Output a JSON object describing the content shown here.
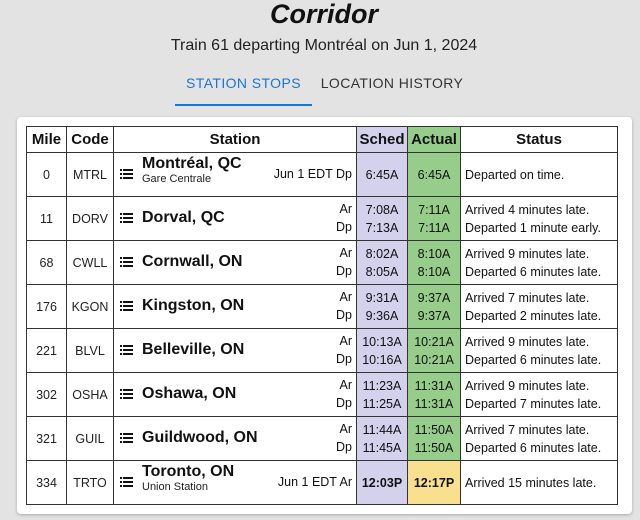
{
  "header": {
    "title": "Corridor",
    "subtitle": "Train 61 departing Montréal on Jun 1, 2024"
  },
  "tabs": [
    {
      "label": "STATION STOPS",
      "active": true
    },
    {
      "label": "LOCATION HISTORY",
      "active": false
    }
  ],
  "table": {
    "headers": {
      "mile": "Mile",
      "code": "Code",
      "station": "Station",
      "sched": "Sched",
      "actual": "Actual",
      "status": "Status"
    },
    "rows": [
      {
        "mile": "0",
        "code": "MTRL",
        "name": "Montréal, QC",
        "sub": "Gare Centrale",
        "tz": "Jun 1 EDT Dp",
        "lines": [
          {
            "type": "",
            "sched": "6:45A",
            "actual": "6:45A",
            "status": "Departed on time."
          }
        ]
      },
      {
        "mile": "11",
        "code": "DORV",
        "name": "Dorval, QC",
        "lines": [
          {
            "type": "Ar",
            "sched": "7:08A",
            "actual": "7:11A",
            "status": "Arrived 4 minutes late."
          },
          {
            "type": "Dp",
            "sched": "7:13A",
            "actual": "7:11A",
            "status": "Departed 1 minute early."
          }
        ]
      },
      {
        "mile": "68",
        "code": "CWLL",
        "name": "Cornwall, ON",
        "lines": [
          {
            "type": "Ar",
            "sched": "8:02A",
            "actual": "8:10A",
            "status": "Arrived 9 minutes late."
          },
          {
            "type": "Dp",
            "sched": "8:05A",
            "actual": "8:10A",
            "status": "Departed 6 minutes late."
          }
        ]
      },
      {
        "mile": "176",
        "code": "KGON",
        "name": "Kingston, ON",
        "lines": [
          {
            "type": "Ar",
            "sched": "9:31A",
            "actual": "9:37A",
            "status": "Arrived 7 minutes late."
          },
          {
            "type": "Dp",
            "sched": "9:36A",
            "actual": "9:37A",
            "status": "Departed 2 minutes late."
          }
        ]
      },
      {
        "mile": "221",
        "code": "BLVL",
        "name": "Belleville, ON",
        "lines": [
          {
            "type": "Ar",
            "sched": "10:13A",
            "actual": "10:21A",
            "status": "Arrived 9 minutes late."
          },
          {
            "type": "Dp",
            "sched": "10:16A",
            "actual": "10:21A",
            "status": "Departed 6 minutes late."
          }
        ]
      },
      {
        "mile": "302",
        "code": "OSHA",
        "name": "Oshawa, ON",
        "lines": [
          {
            "type": "Ar",
            "sched": "11:23A",
            "actual": "11:31A",
            "status": "Arrived 9 minutes late."
          },
          {
            "type": "Dp",
            "sched": "11:25A",
            "actual": "11:31A",
            "status": "Departed 7 minutes late."
          }
        ]
      },
      {
        "mile": "321",
        "code": "GUIL",
        "name": "Guildwood, ON",
        "lines": [
          {
            "type": "Ar",
            "sched": "11:44A",
            "actual": "11:50A",
            "status": "Arrived 7 minutes late."
          },
          {
            "type": "Dp",
            "sched": "11:45A",
            "actual": "11:50A",
            "status": "Departed 6 minutes late."
          }
        ]
      },
      {
        "mile": "334",
        "code": "TRTO",
        "name": "Toronto, ON",
        "sub": "Union Station",
        "tz": "Jun 1 EDT Ar",
        "lines": [
          {
            "type": "",
            "sched": "12:03P",
            "actual": "12:17P",
            "status": "Arrived 15 minutes late."
          }
        ]
      }
    ]
  },
  "icons": {
    "row_menu": "list-icon"
  },
  "colors": {
    "accent": "#1976d2",
    "sched_bg": "#d3d1ec",
    "actual_bg": "#97cd8a",
    "final_actual_bg": "#f8e08f"
  }
}
